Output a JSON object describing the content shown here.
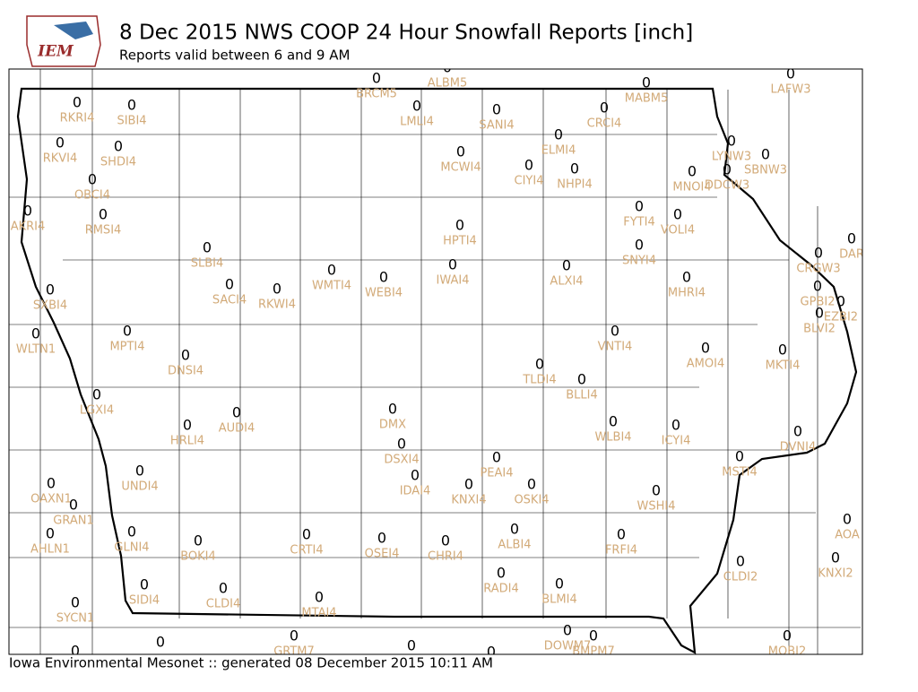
{
  "header": {
    "logo": "IEM",
    "title": "8 Dec 2015 NWS COOP 24 Hour Snowfall Reports [inch]",
    "subtitle": "Reports valid between 6 and 9 AM"
  },
  "footer": "Iowa Environmental Mesonet :: generated 08 December 2015 10:11 AM",
  "value_color": "#000000",
  "label_color": "#d2aa78",
  "stations": [
    {
      "id": "BRCM5",
      "value": 0
    },
    {
      "id": "ALBM5",
      "value": 0
    },
    {
      "id": "MABM5",
      "value": 0
    },
    {
      "id": "LAFW3",
      "value": 0
    },
    {
      "id": "RKRI4",
      "value": 0
    },
    {
      "id": "SIBI4",
      "value": 0
    },
    {
      "id": "LMLI4",
      "value": 0
    },
    {
      "id": "SANI4",
      "value": 0
    },
    {
      "id": "CRCI4",
      "value": 0
    },
    {
      "id": "RKVI4",
      "value": 0
    },
    {
      "id": "SHDI4",
      "value": 0
    },
    {
      "id": "ELMI4",
      "value": 0
    },
    {
      "id": "MCWI4",
      "value": 0
    },
    {
      "id": "LYNW3",
      "value": 0
    },
    {
      "id": "SBNW3",
      "value": 0
    },
    {
      "id": "CIYI4",
      "value": 0
    },
    {
      "id": "NHPI4",
      "value": 0
    },
    {
      "id": "MNOI4",
      "value": 0
    },
    {
      "id": "DDCW3",
      "value": 0
    },
    {
      "id": "OBCI4",
      "value": 0
    },
    {
      "id": "AKRI4",
      "value": 0
    },
    {
      "id": "RMSI4",
      "value": 0
    },
    {
      "id": "FYTI4",
      "value": 0
    },
    {
      "id": "VOLI4",
      "value": 0
    },
    {
      "id": "HPTI4",
      "value": 0
    },
    {
      "id": "SLBI4",
      "value": 0
    },
    {
      "id": "SNYI4",
      "value": 0
    },
    {
      "id": "CRGW3",
      "value": 0
    },
    {
      "id": "DAR",
      "value": 0
    },
    {
      "id": "IWAI4",
      "value": 0
    },
    {
      "id": "ALXI4",
      "value": 0
    },
    {
      "id": "WMTI4",
      "value": 0
    },
    {
      "id": "WEBI4",
      "value": 0
    },
    {
      "id": "MHRI4",
      "value": 0
    },
    {
      "id": "SACI4",
      "value": 0
    },
    {
      "id": "RKWI4",
      "value": 0
    },
    {
      "id": "SXBI4",
      "value": 0
    },
    {
      "id": "GPBI2",
      "value": 0
    },
    {
      "id": "EZBI2",
      "value": 0
    },
    {
      "id": "BLVI2",
      "value": 0
    },
    {
      "id": "WLTN1",
      "value": 0
    },
    {
      "id": "MPTI4",
      "value": 0
    },
    {
      "id": "VNTI4",
      "value": 0
    },
    {
      "id": "AMOI4",
      "value": 0
    },
    {
      "id": "DNSI4",
      "value": 0
    },
    {
      "id": "MKTI4",
      "value": 0
    },
    {
      "id": "TLDI4",
      "value": 0
    },
    {
      "id": "BLLI4",
      "value": 0
    },
    {
      "id": "LGXI4",
      "value": 0
    },
    {
      "id": "DMX",
      "value": 0
    },
    {
      "id": "AUDI4",
      "value": 0
    },
    {
      "id": "WLBI4",
      "value": 0
    },
    {
      "id": "ICYI4",
      "value": 0
    },
    {
      "id": "HRLI4",
      "value": 0
    },
    {
      "id": "DVNI4",
      "value": 0
    },
    {
      "id": "DSXI4",
      "value": 0
    },
    {
      "id": "PEAI4",
      "value": 0
    },
    {
      "id": "MSTI4",
      "value": 0
    },
    {
      "id": "UNDI4",
      "value": 0
    },
    {
      "id": "IDAI4",
      "value": 0
    },
    {
      "id": "KNXI4",
      "value": 0
    },
    {
      "id": "OSKI4",
      "value": 0
    },
    {
      "id": "OAXN1",
      "value": 0
    },
    {
      "id": "WSHI4",
      "value": 0
    },
    {
      "id": "GRAN1",
      "value": 0
    },
    {
      "id": "ALBI4",
      "value": 0
    },
    {
      "id": "AOA",
      "value": 0
    },
    {
      "id": "AHLN1",
      "value": 0
    },
    {
      "id": "GLNI4",
      "value": 0
    },
    {
      "id": "CRTI4",
      "value": 0
    },
    {
      "id": "FRFI4",
      "value": 0
    },
    {
      "id": "OSEI4",
      "value": 0
    },
    {
      "id": "CHRI4",
      "value": 0
    },
    {
      "id": "BOKI4",
      "value": 0
    },
    {
      "id": "KNXI2",
      "value": 0
    },
    {
      "id": "CLDI2",
      "value": 0
    },
    {
      "id": "RADI4",
      "value": 0
    },
    {
      "id": "BLMI4",
      "value": 0
    },
    {
      "id": "SIDI4",
      "value": 0
    },
    {
      "id": "CLDI4",
      "value": 0
    },
    {
      "id": "MTAI4",
      "value": 0
    },
    {
      "id": "SYCN1",
      "value": 0
    },
    {
      "id": "DOWM7",
      "value": 0
    },
    {
      "id": "BMPM7",
      "value": 0
    },
    {
      "id": "GRTM7",
      "value": 0
    },
    {
      "id": "MOBI2",
      "value": 0
    },
    {
      "id": null,
      "value": 0
    },
    {
      "id": null,
      "value": 0
    },
    {
      "id": null,
      "value": 0
    },
    {
      "id": null,
      "value": 0
    }
  ]
}
